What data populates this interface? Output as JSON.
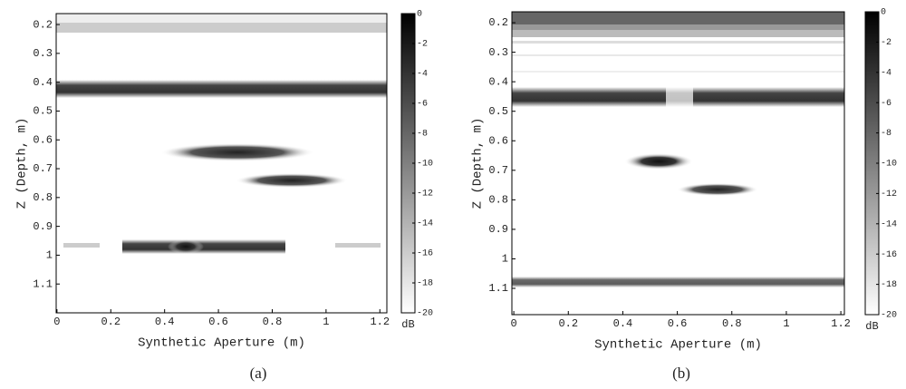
{
  "chart_data": [
    {
      "type": "heatmap",
      "caption": "(a)",
      "xlabel": "Synthetic Aperture (m)",
      "ylabel": "Z (Depth, m)",
      "xlim": [
        -0.003,
        1.226
      ],
      "xticks": [
        0,
        0.2,
        0.4,
        0.6,
        0.8,
        1,
        1.2
      ],
      "ylim": [
        0.162,
        1.2
      ],
      "yticks": [
        0.2,
        0.3,
        0.4,
        0.5,
        0.6,
        0.7,
        0.8,
        0.9,
        1,
        1.1
      ],
      "colorbar": {
        "label": "dB",
        "lim": [
          -20,
          0
        ],
        "ticks": [
          0,
          -2,
          -4,
          -6,
          -8,
          -10,
          -12,
          -14,
          -16,
          -18,
          -20
        ]
      }
    },
    {
      "type": "heatmap",
      "caption": "(b)",
      "xlabel": "Synthetic Aperture (m)",
      "ylabel": "Z (Depth, m)",
      "xlim": [
        -0.007,
        1.213
      ],
      "xticks": [
        0,
        0.2,
        0.4,
        0.6,
        0.8,
        1,
        1.2
      ],
      "ylim": [
        0.163,
        1.189
      ],
      "yticks": [
        0.2,
        0.3,
        0.4,
        0.5,
        0.6,
        0.7,
        0.8,
        0.9,
        1,
        1.1
      ],
      "colorbar": {
        "label": "dB",
        "lim": [
          -20,
          0
        ],
        "ticks": [
          0,
          -2,
          -4,
          -6,
          -8,
          -10,
          -12,
          -14,
          -16,
          -18,
          -20
        ]
      }
    }
  ]
}
